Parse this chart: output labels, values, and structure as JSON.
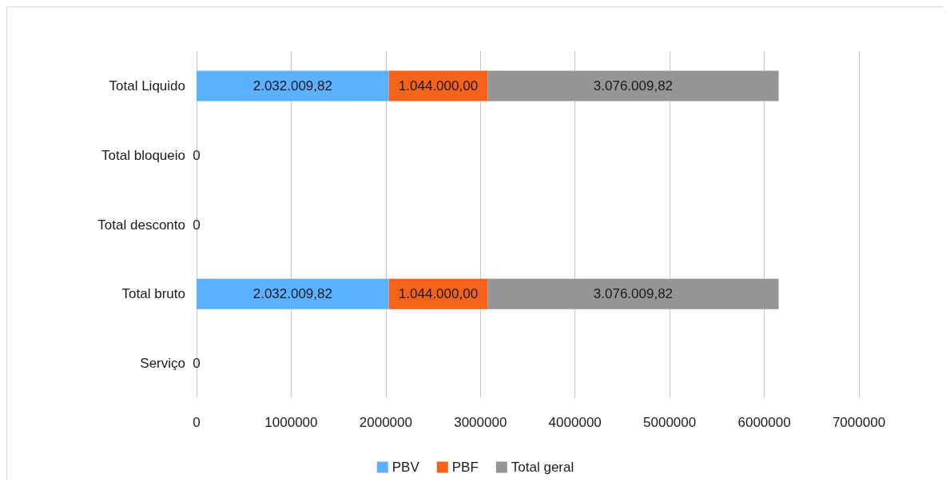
{
  "chart_data": {
    "type": "bar",
    "orientation": "horizontal",
    "stacked": true,
    "categories": [
      "Total Liquido",
      "Total bloqueio",
      "Total desconto",
      "Total bruto",
      "Serviço"
    ],
    "series": [
      {
        "name": "PBV",
        "color": "#5bb1ff",
        "values": [
          2032009.82,
          0,
          0,
          2032009.82,
          0
        ],
        "value_labels": [
          "2.032.009,82",
          "0",
          "0",
          "2.032.009,82",
          "0"
        ]
      },
      {
        "name": "PBF",
        "color": "#f5621a",
        "values": [
          1044000,
          0,
          0,
          1044000,
          0
        ],
        "value_labels": [
          "1.044.000,00",
          null,
          null,
          "1.044.000,00",
          null
        ]
      },
      {
        "name": "Total geral",
        "color": "#959595",
        "values": [
          3076009.82,
          0,
          0,
          3076009.82,
          0
        ],
        "value_labels": [
          "3.076.009,82",
          null,
          null,
          "3.076.009,82",
          null
        ]
      }
    ],
    "xlim": [
      0,
      7000000
    ],
    "xticks": [
      0,
      1000000,
      2000000,
      3000000,
      4000000,
      5000000,
      6000000,
      7000000
    ],
    "grid": "x",
    "legend": "bottom"
  }
}
